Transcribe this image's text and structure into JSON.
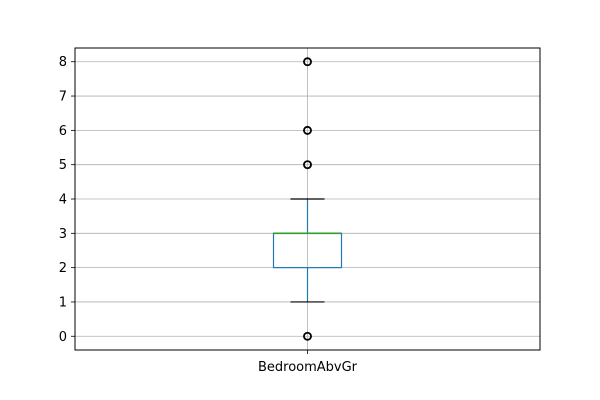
{
  "chart_data": {
    "type": "boxplot",
    "title": "",
    "xlabel": "",
    "ylabel": "",
    "categories": [
      "BedroomAbvGr"
    ],
    "ylim": [
      -0.4,
      8.4
    ],
    "yticks": [
      0,
      1,
      2,
      3,
      4,
      5,
      6,
      7,
      8
    ],
    "grid": true,
    "boxes": [
      {
        "category": "BedroomAbvGr",
        "whisker_low": 1,
        "q1": 2,
        "median": 3,
        "q3": 3,
        "whisker_high": 4,
        "outliers": [
          0,
          5,
          6,
          8
        ]
      }
    ],
    "colors": {
      "box": "#1f77b4",
      "median": "#2ca02c",
      "whisker_cap": "#000000",
      "grid": "#b0b0b0",
      "outlier_edge": "#000000"
    }
  }
}
